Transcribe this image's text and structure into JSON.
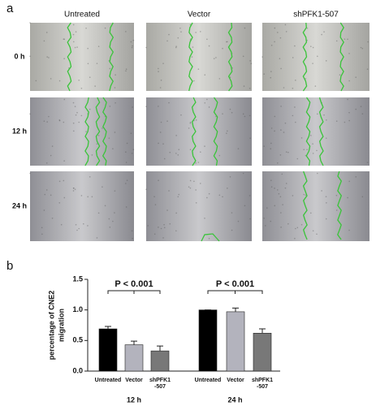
{
  "panel_a": {
    "label": "a",
    "columns": [
      "Untreated",
      "Vector",
      "shPFK1-507"
    ],
    "rows": [
      "0 h",
      "12 h",
      "24 h"
    ]
  },
  "chart_data": {
    "type": "bar",
    "panel_label": "b",
    "y_label": [
      "percentage of CNE2",
      "migration"
    ],
    "groups": [
      "12 h",
      "24 h"
    ],
    "series": [
      {
        "name": "Untreated",
        "color": "#000000",
        "values": [
          0.69,
          1.0
        ],
        "errors": [
          0.04,
          0.0
        ]
      },
      {
        "name": "Vector",
        "color": "#b3b3bd",
        "values": [
          0.43,
          0.97
        ],
        "errors": [
          0.06,
          0.06
        ]
      },
      {
        "name": "shPFK1\n-507",
        "color": "#787878",
        "values": [
          0.33,
          0.62
        ],
        "errors": [
          0.08,
          0.07
        ]
      }
    ],
    "annotations": [
      "P < 0.001",
      "P < 0.001"
    ],
    "ylim": [
      0,
      1.5
    ],
    "yticks": [
      {
        "value": 0,
        "label": "0.0"
      },
      0.5,
      {
        "value": 1,
        "label": "1.0"
      },
      1.5
    ]
  }
}
